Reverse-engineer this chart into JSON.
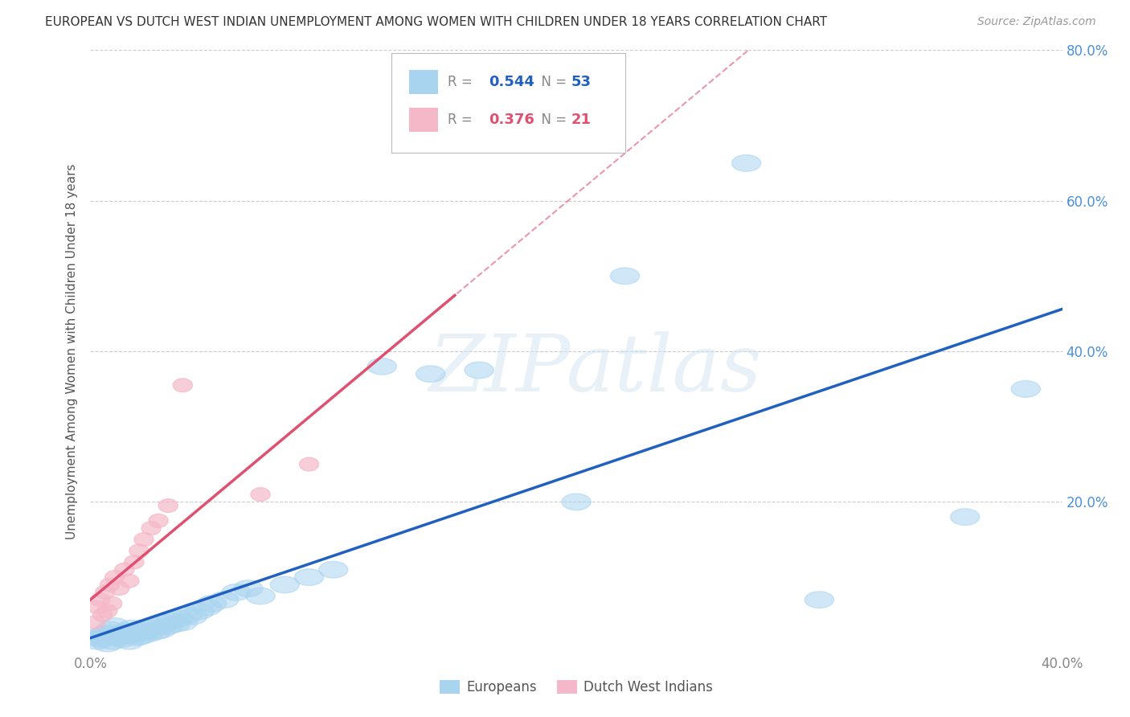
{
  "title": "EUROPEAN VS DUTCH WEST INDIAN UNEMPLOYMENT AMONG WOMEN WITH CHILDREN UNDER 18 YEARS CORRELATION CHART",
  "source": "Source: ZipAtlas.com",
  "ylabel": "Unemployment Among Women with Children Under 18 years",
  "xlim": [
    0.0,
    0.4
  ],
  "ylim": [
    0.0,
    0.8
  ],
  "xticks": [
    0.0,
    0.4
  ],
  "xticklabels": [
    "0.0%",
    "40.0%"
  ],
  "yticks": [
    0.0,
    0.2,
    0.4,
    0.6,
    0.8
  ],
  "yticklabels": [
    "",
    "20.0%",
    "40.0%",
    "60.0%",
    "80.0%"
  ],
  "europeans_x": [
    0.002,
    0.003,
    0.004,
    0.005,
    0.006,
    0.007,
    0.008,
    0.009,
    0.01,
    0.011,
    0.012,
    0.013,
    0.014,
    0.015,
    0.016,
    0.017,
    0.018,
    0.019,
    0.02,
    0.021,
    0.022,
    0.024,
    0.025,
    0.027,
    0.028,
    0.029,
    0.03,
    0.032,
    0.033,
    0.035,
    0.036,
    0.038,
    0.04,
    0.042,
    0.045,
    0.048,
    0.05,
    0.055,
    0.06,
    0.065,
    0.07,
    0.08,
    0.09,
    0.1,
    0.12,
    0.14,
    0.16,
    0.2,
    0.22,
    0.27,
    0.3,
    0.36,
    0.385
  ],
  "europeans_y": [
    0.02,
    0.015,
    0.018,
    0.022,
    0.025,
    0.012,
    0.03,
    0.015,
    0.035,
    0.02,
    0.025,
    0.018,
    0.022,
    0.028,
    0.015,
    0.032,
    0.025,
    0.02,
    0.03,
    0.022,
    0.028,
    0.025,
    0.032,
    0.028,
    0.035,
    0.03,
    0.04,
    0.035,
    0.042,
    0.038,
    0.045,
    0.04,
    0.05,
    0.048,
    0.055,
    0.06,
    0.065,
    0.07,
    0.08,
    0.085,
    0.075,
    0.09,
    0.1,
    0.11,
    0.38,
    0.37,
    0.375,
    0.2,
    0.5,
    0.65,
    0.07,
    0.18,
    0.35
  ],
  "dutch_x": [
    0.002,
    0.003,
    0.004,
    0.005,
    0.006,
    0.007,
    0.008,
    0.009,
    0.01,
    0.012,
    0.014,
    0.016,
    0.018,
    0.02,
    0.022,
    0.025,
    0.028,
    0.032,
    0.038,
    0.07,
    0.09
  ],
  "dutch_y": [
    0.04,
    0.06,
    0.07,
    0.05,
    0.08,
    0.055,
    0.09,
    0.065,
    0.1,
    0.085,
    0.11,
    0.095,
    0.12,
    0.135,
    0.15,
    0.165,
    0.175,
    0.195,
    0.355,
    0.21,
    0.25
  ],
  "european_color": "#a8d4f0",
  "dutch_color": "#f5b8c8",
  "european_line_color": "#2060c0",
  "dutch_line_color": "#e05070",
  "R_european": 0.544,
  "N_european": 53,
  "R_dutch": 0.376,
  "N_dutch": 21,
  "watermark": "ZIPatlas",
  "background_color": "#ffffff",
  "grid_color": "#cccccc"
}
